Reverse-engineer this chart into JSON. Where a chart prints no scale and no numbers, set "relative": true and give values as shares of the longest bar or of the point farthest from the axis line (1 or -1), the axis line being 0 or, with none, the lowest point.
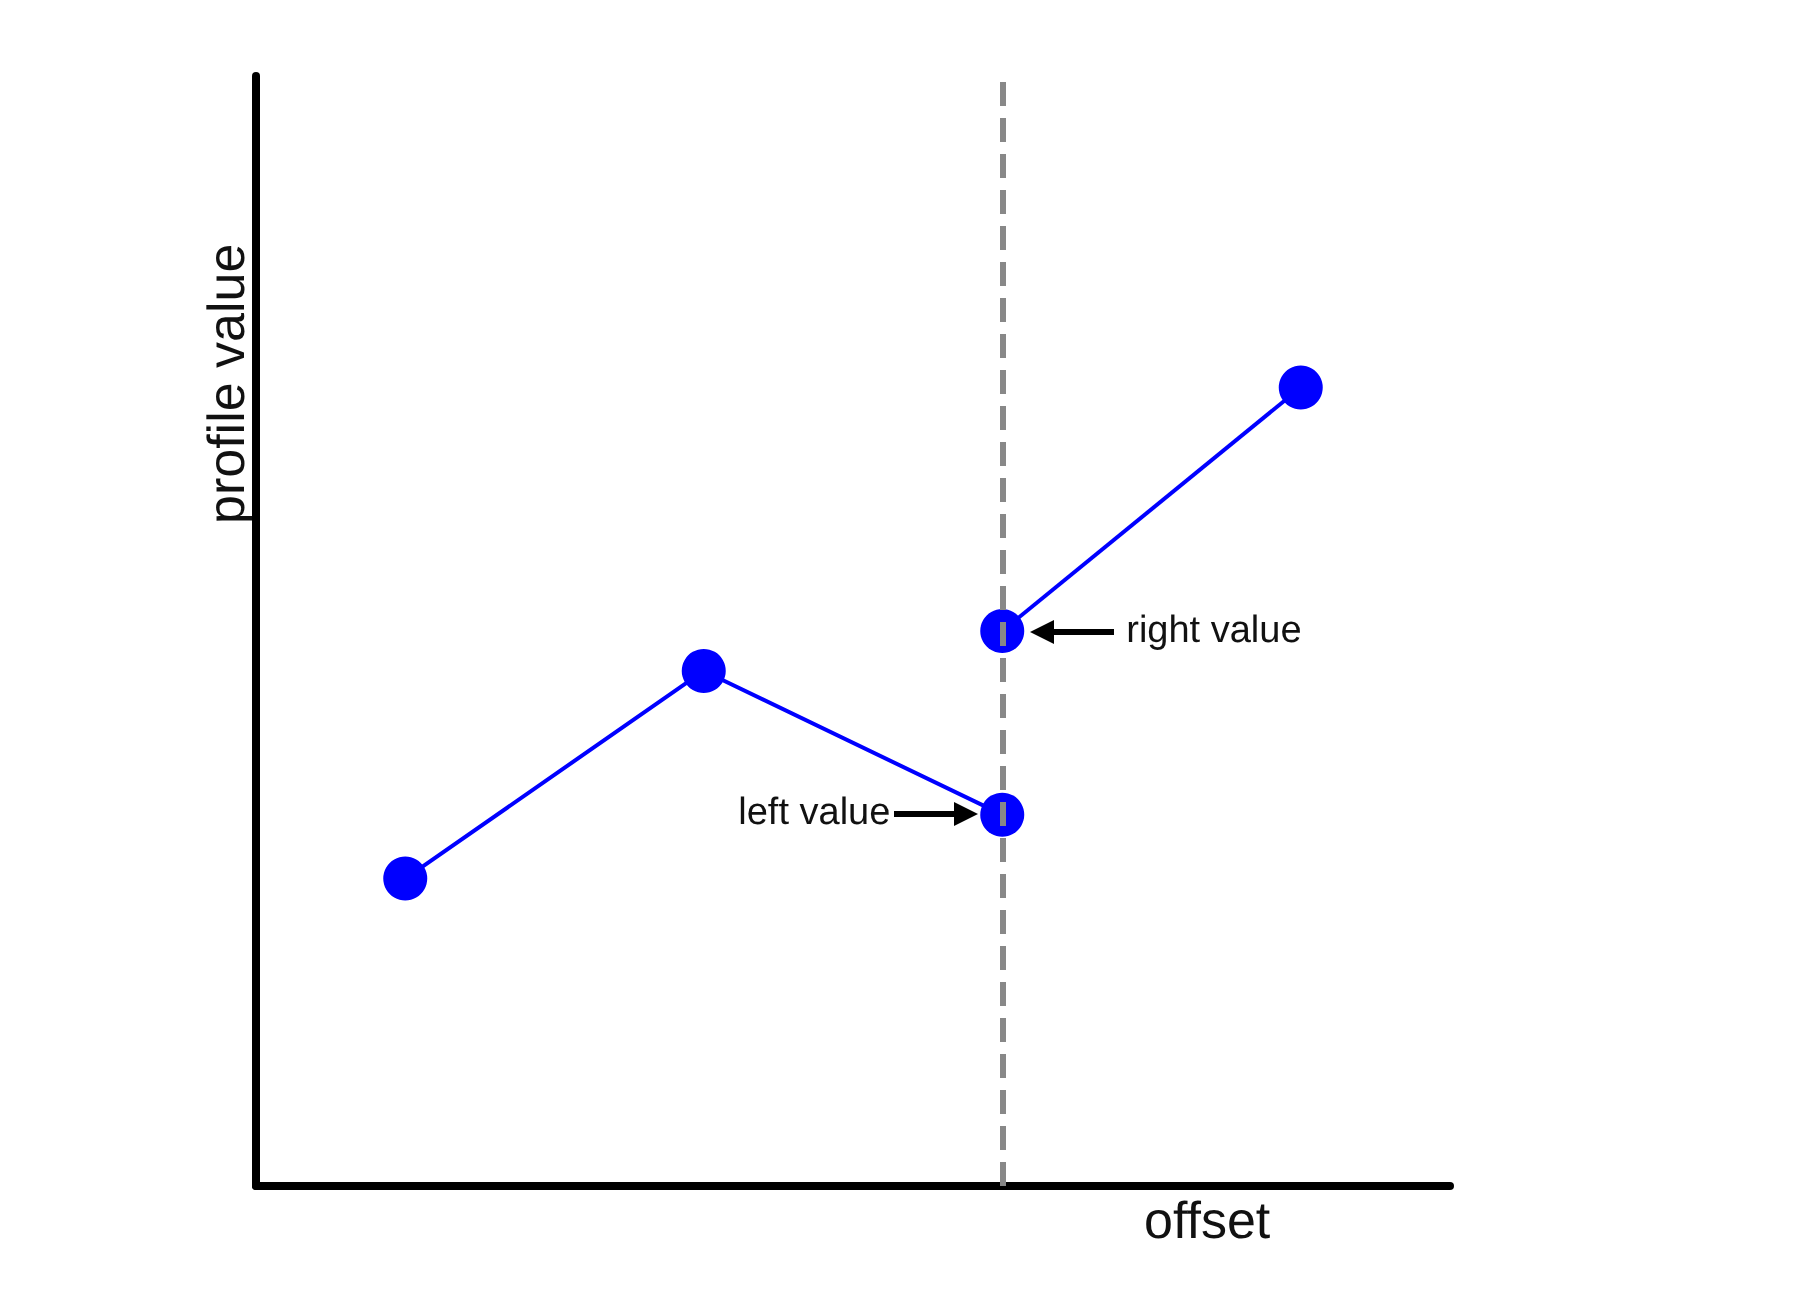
{
  "chart_data": {
    "type": "line",
    "relative": true,
    "xlabel": "offset",
    "ylabel": "profile value",
    "categories": [
      null,
      null,
      null,
      null
    ],
    "grid": false,
    "marker": "circle",
    "line_style": "solid",
    "series": [
      {
        "color": "#0000ff",
        "values": [
          0.385,
          0.645,
          0.465,
          null
        ]
      },
      {
        "color": "#0000ff",
        "values": [
          null,
          null,
          0.695,
          1
        ]
      }
    ],
    "ref_lines": [
      {
        "axis": "x",
        "color": "#888888",
        "line_style": "dashed"
      }
    ],
    "annotations": [
      "left value",
      "right value"
    ]
  }
}
